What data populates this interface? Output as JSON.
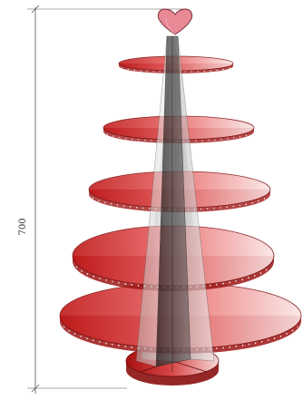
{
  "dimension": {
    "height_label": "700",
    "line_color": "#555555"
  },
  "stand": {
    "tier_count": 5,
    "topper": "heart",
    "colors": {
      "tier_dark": "#c01818",
      "tier_mid": "#e86060",
      "tier_light": "#fbe6e6",
      "tier_edge": "#8a1010",
      "heart_fill": "#e88a96",
      "heart_edge": "#7a2a34",
      "column_dark": "#2e2e2e",
      "column_mid": "#8c8c8c",
      "column_light": "#e4e4e4"
    }
  }
}
